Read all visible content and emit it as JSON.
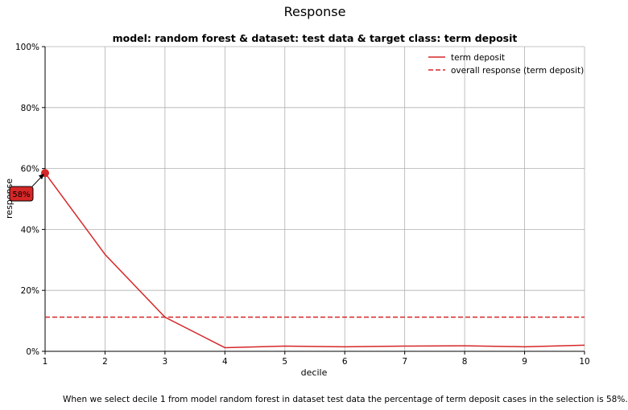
{
  "chart_data": {
    "type": "line",
    "suptitle": "Response",
    "title": "model: random forest & dataset: test data & target class: term deposit",
    "xlabel": "decile",
    "ylabel": "response",
    "x": [
      1,
      2,
      3,
      4,
      5,
      6,
      7,
      8,
      9,
      10
    ],
    "xlim": [
      1,
      10
    ],
    "ylim": [
      0,
      1
    ],
    "y_ticks": [
      {
        "value": 0,
        "label": "0%"
      },
      {
        "value": 0.2,
        "label": "20%"
      },
      {
        "value": 0.4,
        "label": "40%"
      },
      {
        "value": 0.6,
        "label": "60%"
      },
      {
        "value": 0.8,
        "label": "80%"
      },
      {
        "value": 1.0,
        "label": "100%"
      }
    ],
    "grid": true,
    "legend_position": "top-right",
    "series": [
      {
        "name": "term deposit",
        "style": "solid",
        "color": "#d62728",
        "values": [
          0.585,
          0.318,
          0.112,
          0.012,
          0.017,
          0.015,
          0.017,
          0.018,
          0.015,
          0.02
        ]
      },
      {
        "name": "overall response (term deposit)",
        "style": "dashed",
        "color": "#d62728",
        "values": [
          0.112,
          0.112,
          0.112,
          0.112,
          0.112,
          0.112,
          0.112,
          0.112,
          0.112,
          0.112
        ]
      }
    ],
    "annotation": {
      "x": 1,
      "y": 0.585,
      "label": "58%",
      "color": "#d62728"
    },
    "footnote": "When we select decile 1 from model random forest in dataset test data the percentage of term deposit cases in the selection is 58%."
  }
}
